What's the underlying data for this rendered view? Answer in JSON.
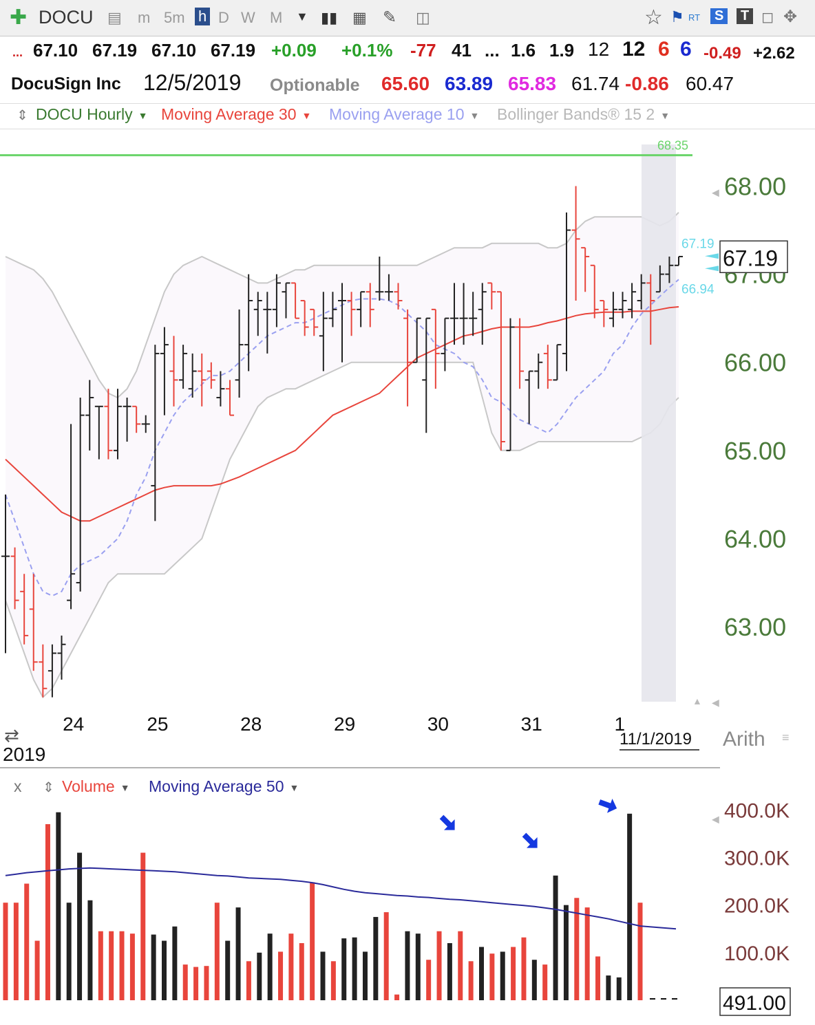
{
  "toolbar": {
    "symbol": "DOCU",
    "timeframes": [
      "m",
      "5m",
      "h",
      "D",
      "W",
      "M"
    ],
    "active_timeframe": "h",
    "right_labels": [
      "RT",
      "S",
      "T"
    ]
  },
  "quote_row1": {
    "lead": "...",
    "open": "67.10",
    "high": "67.19",
    "low": "67.10",
    "close": "67.19",
    "change": "+0.09",
    "change_pct": "+0.1%",
    "v1": "-77",
    "v2": "41",
    "ellipsis": "...",
    "v3": "1.6",
    "v4": "1.9",
    "v5": "12",
    "v6": "12",
    "v7": "6",
    "v8": "6",
    "v9": "-0.49",
    "v10": "+2.62"
  },
  "quote_row2": {
    "name": "DocuSign Inc",
    "date": "12/5/2019",
    "optionable": "Optionable",
    "p1": "65.60",
    "p2": "63.89",
    "p3": "65.83",
    "p4": "61.74",
    "p5": "-0.86",
    "p6": "60.47"
  },
  "studies": {
    "price": "DOCU Hourly",
    "ma30": "Moving Average 30",
    "ma10": "Moving Average 10",
    "bb": "Bollinger Bands® 15 2"
  },
  "volume_studies": {
    "close": "x",
    "volume": "Volume",
    "ma50": "Moving Average 50"
  },
  "colors": {
    "up": "#222222",
    "down": "#e8453c",
    "ma30": "#e8453c",
    "ma10": "#9aa0f0",
    "band": "#c8c8c8",
    "band_fill": "#fbf8fc",
    "axis_text": "#4a7a3a",
    "ma50": "#2a2a9a",
    "arrow": "#1438e0",
    "top_line": "#6ad46a",
    "cyan": "#6ad8e8"
  },
  "chart_data": [
    {
      "type": "ohlc",
      "title": "DOCU Hourly",
      "y_ticks": [
        63.0,
        64.0,
        65.0,
        66.0,
        67.0,
        68.0
      ],
      "y_tick_labels": [
        "63.00",
        "64.00",
        "65.00",
        "66.00",
        "67.00",
        "68.00"
      ],
      "ylim": [
        62.15,
        68.55
      ],
      "x_labels": [
        "24",
        "25",
        "28",
        "29",
        "30",
        "31",
        "1"
      ],
      "x_footer_year": "2019",
      "x_footer_date": "11/1/2019",
      "scale_mode": "Arith",
      "last_price": "67.19",
      "ma10_value": "66.94",
      "ma10_value_label": "66.94",
      "last_price_small": "67.19",
      "top_line_value": "68.35",
      "top_line_label": "68.35",
      "bars": [
        {
          "o": 63.8,
          "h": 64.5,
          "l": 62.7,
          "c": 63.8
        },
        {
          "o": 63.8,
          "h": 63.9,
          "l": 63.2,
          "c": 63.3
        },
        {
          "o": 63.4,
          "h": 63.6,
          "l": 62.8,
          "c": 62.9
        },
        {
          "o": 63.2,
          "h": 63.6,
          "l": 62.5,
          "c": 62.6
        },
        {
          "o": 62.6,
          "h": 62.8,
          "l": 62.2,
          "c": 62.3
        },
        {
          "o": 62.5,
          "h": 62.8,
          "l": 62.2,
          "c": 62.7
        },
        {
          "o": 62.7,
          "h": 62.9,
          "l": 62.4,
          "c": 62.8
        },
        {
          "o": 63.3,
          "h": 65.3,
          "l": 63.2,
          "c": 63.6
        },
        {
          "o": 63.5,
          "h": 65.6,
          "l": 63.4,
          "c": 65.4
        },
        {
          "o": 65.4,
          "h": 65.8,
          "l": 65.0,
          "c": 65.6
        },
        {
          "o": 65.5,
          "h": 65.5,
          "l": 64.9,
          "c": 65.5
        },
        {
          "o": 65.5,
          "h": 65.7,
          "l": 64.9,
          "c": 65.0
        },
        {
          "o": 65.0,
          "h": 65.7,
          "l": 64.9,
          "c": 65.5
        },
        {
          "o": 65.5,
          "h": 65.6,
          "l": 65.1,
          "c": 65.5
        },
        {
          "o": 65.5,
          "h": 65.5,
          "l": 65.2,
          "c": 65.3
        },
        {
          "o": 65.3,
          "h": 65.4,
          "l": 65.2,
          "c": 65.3
        },
        {
          "o": 64.6,
          "h": 66.2,
          "l": 64.2,
          "c": 66.1
        },
        {
          "o": 66.1,
          "h": 66.4,
          "l": 65.4,
          "c": 66.2
        },
        {
          "o": 65.9,
          "h": 66.3,
          "l": 65.5,
          "c": 65.8
        },
        {
          "o": 65.8,
          "h": 66.2,
          "l": 65.7,
          "c": 66.1
        },
        {
          "o": 65.7,
          "h": 66.1,
          "l": 65.6,
          "c": 65.9
        },
        {
          "o": 65.9,
          "h": 66.1,
          "l": 65.5,
          "c": 65.8
        },
        {
          "o": 65.9,
          "h": 66.0,
          "l": 65.7,
          "c": 65.8
        },
        {
          "o": 65.6,
          "h": 65.9,
          "l": 65.5,
          "c": 65.7
        },
        {
          "o": 65.7,
          "h": 65.8,
          "l": 65.4,
          "c": 65.4
        },
        {
          "o": 65.8,
          "h": 66.6,
          "l": 65.6,
          "c": 66.2
        },
        {
          "o": 66.2,
          "h": 67.0,
          "l": 65.9,
          "c": 66.7
        },
        {
          "o": 66.6,
          "h": 66.8,
          "l": 66.3,
          "c": 66.7
        },
        {
          "o": 66.6,
          "h": 66.8,
          "l": 66.1,
          "c": 66.6
        },
        {
          "o": 66.6,
          "h": 67.0,
          "l": 66.4,
          "c": 66.9
        },
        {
          "o": 66.8,
          "h": 66.9,
          "l": 66.5,
          "c": 66.9
        },
        {
          "o": 66.9,
          "h": 66.9,
          "l": 66.5,
          "c": 66.5
        },
        {
          "o": 66.7,
          "h": 66.7,
          "l": 66.3,
          "c": 66.4
        },
        {
          "o": 66.6,
          "h": 66.6,
          "l": 66.3,
          "c": 66.4
        },
        {
          "o": 66.3,
          "h": 66.8,
          "l": 65.9,
          "c": 66.5
        },
        {
          "o": 66.5,
          "h": 66.8,
          "l": 66.4,
          "c": 66.6
        },
        {
          "o": 66.7,
          "h": 66.9,
          "l": 66.0,
          "c": 66.7
        },
        {
          "o": 66.7,
          "h": 66.8,
          "l": 66.3,
          "c": 66.6
        },
        {
          "o": 66.6,
          "h": 66.8,
          "l": 66.4,
          "c": 66.8
        },
        {
          "o": 66.8,
          "h": 66.9,
          "l": 66.4,
          "c": 66.6
        },
        {
          "o": 66.8,
          "h": 67.2,
          "l": 66.7,
          "c": 66.8
        },
        {
          "o": 66.8,
          "h": 67.0,
          "l": 66.7,
          "c": 66.8
        },
        {
          "o": 66.8,
          "h": 66.9,
          "l": 66.6,
          "c": 66.7
        },
        {
          "o": 66.5,
          "h": 66.6,
          "l": 65.5,
          "c": 66.0
        },
        {
          "o": 66.0,
          "h": 66.5,
          "l": 66.0,
          "c": 66.5
        },
        {
          "o": 65.8,
          "h": 66.5,
          "l": 65.2,
          "c": 66.5
        },
        {
          "o": 66.6,
          "h": 66.6,
          "l": 65.7,
          "c": 66.1
        },
        {
          "o": 66.1,
          "h": 66.5,
          "l": 65.9,
          "c": 66.5
        },
        {
          "o": 66.5,
          "h": 66.9,
          "l": 66.2,
          "c": 66.5
        },
        {
          "o": 66.5,
          "h": 66.9,
          "l": 66.2,
          "c": 66.5
        },
        {
          "o": 66.5,
          "h": 66.8,
          "l": 66.3,
          "c": 66.5
        },
        {
          "o": 66.6,
          "h": 66.9,
          "l": 66.2,
          "c": 66.8
        },
        {
          "o": 66.9,
          "h": 66.9,
          "l": 66.6,
          "c": 66.8
        },
        {
          "o": 66.8,
          "h": 66.8,
          "l": 65.0,
          "c": 65.1
        },
        {
          "o": 65.0,
          "h": 66.5,
          "l": 65.0,
          "c": 66.4
        },
        {
          "o": 66.4,
          "h": 66.5,
          "l": 65.7,
          "c": 65.9
        },
        {
          "o": 65.8,
          "h": 65.9,
          "l": 65.3,
          "c": 65.9
        },
        {
          "o": 65.9,
          "h": 66.1,
          "l": 65.7,
          "c": 66.0
        },
        {
          "o": 66.1,
          "h": 66.2,
          "l": 65.7,
          "c": 65.8
        },
        {
          "o": 65.8,
          "h": 66.2,
          "l": 65.8,
          "c": 66.2
        },
        {
          "o": 66.1,
          "h": 67.7,
          "l": 65.9,
          "c": 67.5
        },
        {
          "o": 67.5,
          "h": 68.0,
          "l": 66.7,
          "c": 67.4
        },
        {
          "o": 67.3,
          "h": 67.3,
          "l": 66.8,
          "c": 67.2
        },
        {
          "o": 67.1,
          "h": 67.1,
          "l": 66.5,
          "c": 66.6
        },
        {
          "o": 66.7,
          "h": 66.7,
          "l": 66.4,
          "c": 66.6
        },
        {
          "o": 66.5,
          "h": 66.8,
          "l": 66.4,
          "c": 66.6
        },
        {
          "o": 66.6,
          "h": 66.8,
          "l": 66.5,
          "c": 66.7
        },
        {
          "o": 66.6,
          "h": 66.9,
          "l": 66.5,
          "c": 66.8
        },
        {
          "o": 66.7,
          "h": 67.0,
          "l": 66.6,
          "c": 66.9
        },
        {
          "o": 66.9,
          "h": 67.0,
          "l": 66.2,
          "c": 66.7
        },
        {
          "o": 66.8,
          "h": 67.1,
          "l": 66.8,
          "c": 67.0
        },
        {
          "o": 67.0,
          "h": 67.2,
          "l": 66.9,
          "c": 67.1
        },
        {
          "o": 67.1,
          "h": 67.2,
          "l": 67.1,
          "c": 67.2
        }
      ],
      "ma30": [
        64.9,
        64.8,
        64.7,
        64.6,
        64.5,
        64.4,
        64.3,
        64.25,
        64.2,
        64.2,
        64.25,
        64.3,
        64.35,
        64.4,
        64.45,
        64.5,
        64.55,
        64.58,
        64.6,
        64.6,
        64.6,
        64.6,
        64.6,
        64.62,
        64.66,
        64.7,
        64.75,
        64.8,
        64.85,
        64.9,
        64.95,
        65.0,
        65.1,
        65.2,
        65.3,
        65.4,
        65.45,
        65.5,
        65.55,
        65.6,
        65.65,
        65.75,
        65.85,
        65.95,
        66.05,
        66.1,
        66.15,
        66.2,
        66.25,
        66.3,
        66.32,
        66.35,
        66.38,
        66.4,
        66.4,
        66.4,
        66.4,
        66.42,
        66.45,
        66.47,
        66.5,
        66.53,
        66.55,
        66.56,
        66.57,
        66.57,
        66.57,
        66.58,
        66.58,
        66.58,
        66.6,
        66.62,
        66.63
      ],
      "ma10": [
        64.5,
        64.2,
        63.9,
        63.6,
        63.4,
        63.35,
        63.4,
        63.6,
        63.7,
        63.75,
        63.8,
        63.9,
        64.0,
        64.2,
        64.5,
        64.7,
        65.0,
        65.2,
        65.4,
        65.55,
        65.65,
        65.75,
        65.85,
        65.85,
        65.9,
        66.0,
        66.1,
        66.2,
        66.3,
        66.35,
        66.4,
        66.45,
        66.45,
        66.5,
        66.55,
        66.6,
        66.65,
        66.7,
        66.72,
        66.72,
        66.72,
        66.7,
        66.65,
        66.55,
        66.45,
        66.35,
        66.2,
        66.15,
        66.1,
        66.0,
        65.95,
        65.8,
        65.6,
        65.55,
        65.45,
        65.35,
        65.3,
        65.25,
        65.2,
        65.3,
        65.45,
        65.6,
        65.7,
        65.8,
        65.9,
        66.1,
        66.2,
        66.4,
        66.55,
        66.65,
        66.75,
        66.85,
        66.94
      ],
      "bb_upper": [
        67.2,
        67.15,
        67.1,
        67.05,
        66.95,
        66.8,
        66.6,
        66.4,
        66.2,
        66.0,
        65.8,
        65.65,
        65.6,
        65.7,
        65.9,
        66.2,
        66.5,
        66.8,
        67.0,
        67.1,
        67.15,
        67.2,
        67.15,
        67.1,
        67.05,
        67.0,
        66.95,
        66.9,
        66.9,
        66.95,
        67.0,
        67.05,
        67.05,
        67.1,
        67.1,
        67.1,
        67.1,
        67.1,
        67.1,
        67.1,
        67.1,
        67.1,
        67.1,
        67.1,
        67.1,
        67.15,
        67.2,
        67.25,
        67.3,
        67.3,
        67.3,
        67.3,
        67.35,
        67.35,
        67.35,
        67.35,
        67.35,
        67.35,
        67.3,
        67.3,
        67.35,
        67.5,
        67.6,
        67.65,
        67.65,
        67.65,
        67.65,
        67.65,
        67.65,
        67.6,
        67.55,
        67.6,
        67.7
      ],
      "bb_lower": [
        63.3,
        63.0,
        62.7,
        62.4,
        62.2,
        62.3,
        62.5,
        62.7,
        62.9,
        63.1,
        63.3,
        63.5,
        63.6,
        63.6,
        63.6,
        63.6,
        63.6,
        63.6,
        63.7,
        63.8,
        63.9,
        64.0,
        64.3,
        64.6,
        64.9,
        65.1,
        65.3,
        65.5,
        65.6,
        65.65,
        65.7,
        65.7,
        65.75,
        65.8,
        65.85,
        65.9,
        65.95,
        66.0,
        66.0,
        66.0,
        66.0,
        66.0,
        66.0,
        66.0,
        66.0,
        66.0,
        66.0,
        66.0,
        66.0,
        66.0,
        66.0,
        65.6,
        65.2,
        65.0,
        65.0,
        65.0,
        65.05,
        65.1,
        65.1,
        65.1,
        65.1,
        65.1,
        65.1,
        65.1,
        65.1,
        65.1,
        65.1,
        65.1,
        65.15,
        65.2,
        65.3,
        65.5,
        65.6
      ]
    },
    {
      "type": "bar",
      "title": "Volume",
      "y_ticks": [
        100000,
        200000,
        300000,
        400000
      ],
      "y_tick_labels": [
        "100.0K",
        "200.0K",
        "300.0K",
        "400.0K"
      ],
      "ylim": [
        0,
        425000
      ],
      "last_value": "491.00",
      "ma50_label": "Moving Average 50",
      "values": [
        205000,
        205000,
        245000,
        125000,
        370000,
        395000,
        205000,
        310000,
        210000,
        145000,
        145000,
        145000,
        140000,
        310000,
        138000,
        125000,
        155000,
        75000,
        70000,
        72000,
        205000,
        125000,
        195000,
        82000,
        100000,
        140000,
        102000,
        140000,
        120000,
        248000,
        102000,
        82000,
        130000,
        132000,
        102000,
        175000,
        185000,
        12000,
        145000,
        140000,
        85000,
        145000,
        120000,
        145000,
        82000,
        112000,
        98000,
        102000,
        112000,
        132000,
        85000,
        75000,
        262000,
        200000,
        215000,
        195000,
        92000,
        52000,
        48000,
        392000,
        205000
      ],
      "ups": [
        false,
        false,
        false,
        false,
        false,
        true,
        true,
        true,
        true,
        false,
        false,
        false,
        false,
        false,
        true,
        true,
        true,
        false,
        false,
        false,
        false,
        true,
        true,
        false,
        true,
        true,
        false,
        false,
        false,
        false,
        true,
        false,
        true,
        true,
        true,
        true,
        false,
        false,
        true,
        true,
        false,
        false,
        true,
        false,
        false,
        true,
        false,
        true,
        false,
        false,
        true,
        false,
        true,
        true,
        false,
        false,
        false,
        true,
        true,
        true,
        false
      ],
      "ma50": [
        262000,
        265000,
        268000,
        270000,
        272000,
        274000,
        276000,
        277000,
        278000,
        277000,
        276000,
        275000,
        274000,
        273000,
        272000,
        271000,
        270000,
        268000,
        266000,
        264000,
        262000,
        261000,
        259000,
        257000,
        256000,
        255000,
        254000,
        252000,
        250000,
        247000,
        243000,
        238000,
        233000,
        229000,
        226000,
        224000,
        222000,
        220000,
        219000,
        217000,
        216000,
        214000,
        212000,
        211000,
        209000,
        207000,
        205000,
        203000,
        201000,
        199000,
        197000,
        194000,
        191000,
        187000,
        183000,
        179000,
        175000,
        171000,
        166000,
        161000,
        156000
      ]
    }
  ]
}
